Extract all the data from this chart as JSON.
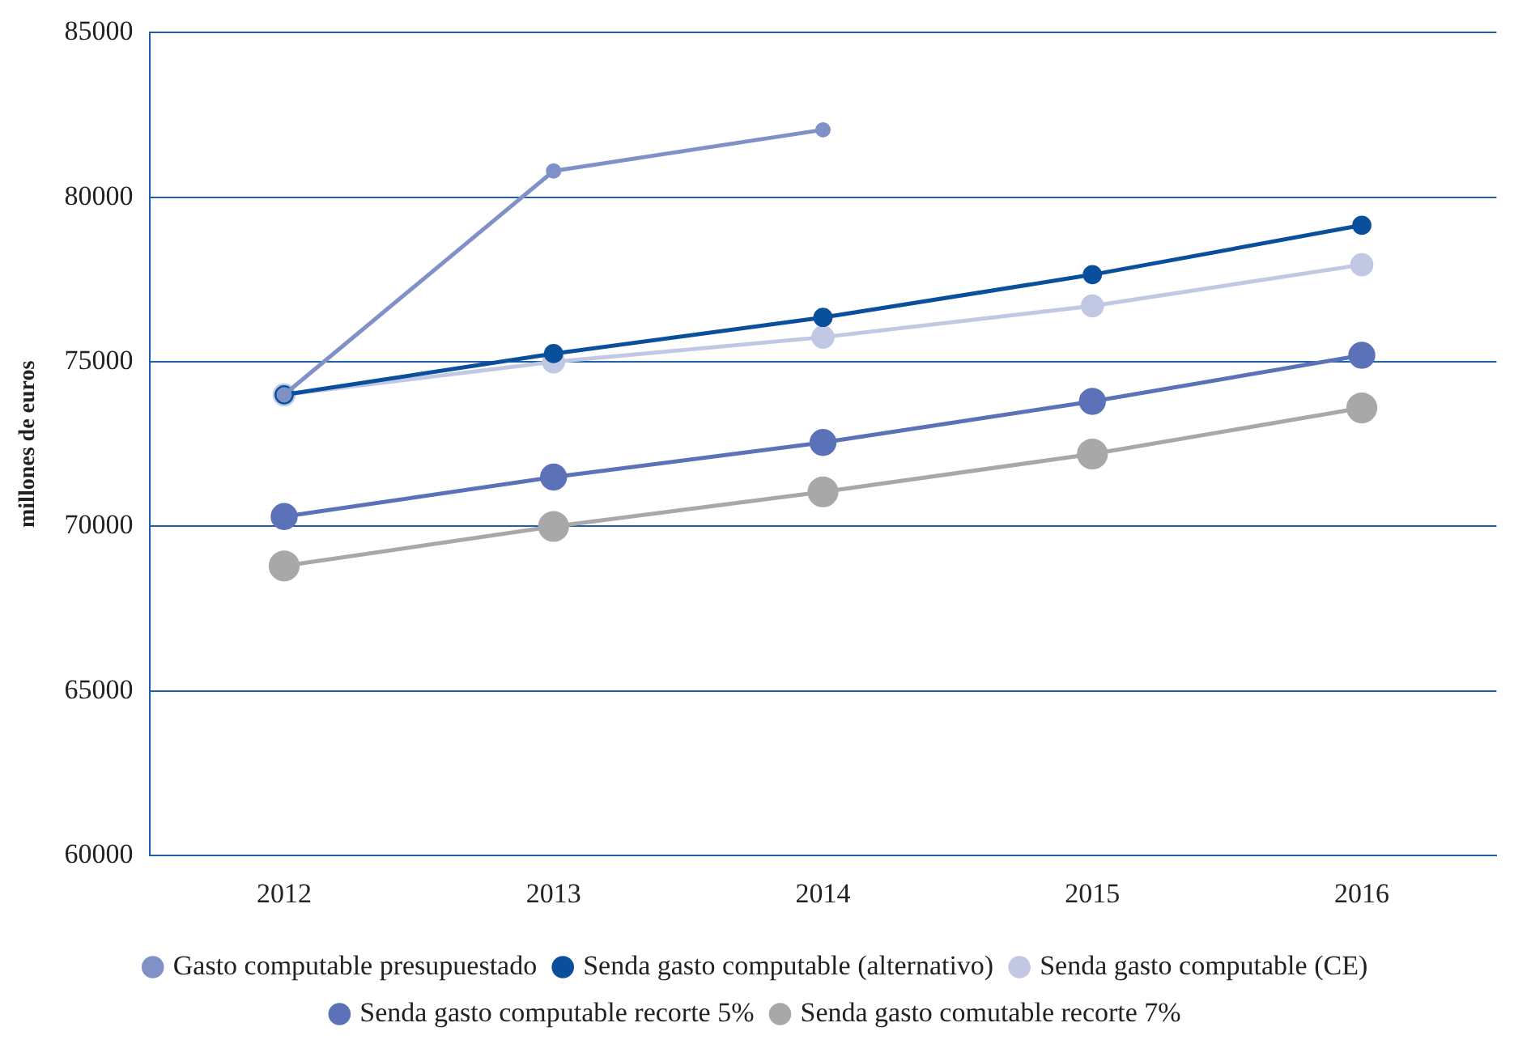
{
  "chart_data": {
    "type": "line",
    "ylabel": "millones de euros",
    "categories": [
      "2012",
      "2013",
      "2014",
      "2015",
      "2016"
    ],
    "series": [
      {
        "name": "Gasto computable presupuestado",
        "color": "#8091c8",
        "values": [
          74000,
          80800,
          82050,
          null,
          null
        ]
      },
      {
        "name": "Senda gasto computable (alternativo)",
        "color": "#0a4f9c",
        "values": [
          74000,
          75250,
          76350,
          77650,
          79150
        ]
      },
      {
        "name": "Senda gasto computable (CE)",
        "color": "#c0c8e4",
        "values": [
          74000,
          75000,
          75750,
          76700,
          77950
        ]
      },
      {
        "name": "Senda gasto computable recorte 5%",
        "color": "#5b72b8",
        "values": [
          70300,
          71500,
          72550,
          73800,
          75200
        ]
      },
      {
        "name": "Senda gasto comutable recorte 7%",
        "color": "#a8a8a8",
        "values": [
          68800,
          70000,
          71050,
          72200,
          73600
        ]
      }
    ],
    "ylim": [
      60000,
      85000
    ],
    "yticks": [
      60000,
      65000,
      70000,
      75000,
      80000,
      85000
    ],
    "grid": "y",
    "legend": "bottom",
    "marker": "circle",
    "line_style": "solid"
  }
}
